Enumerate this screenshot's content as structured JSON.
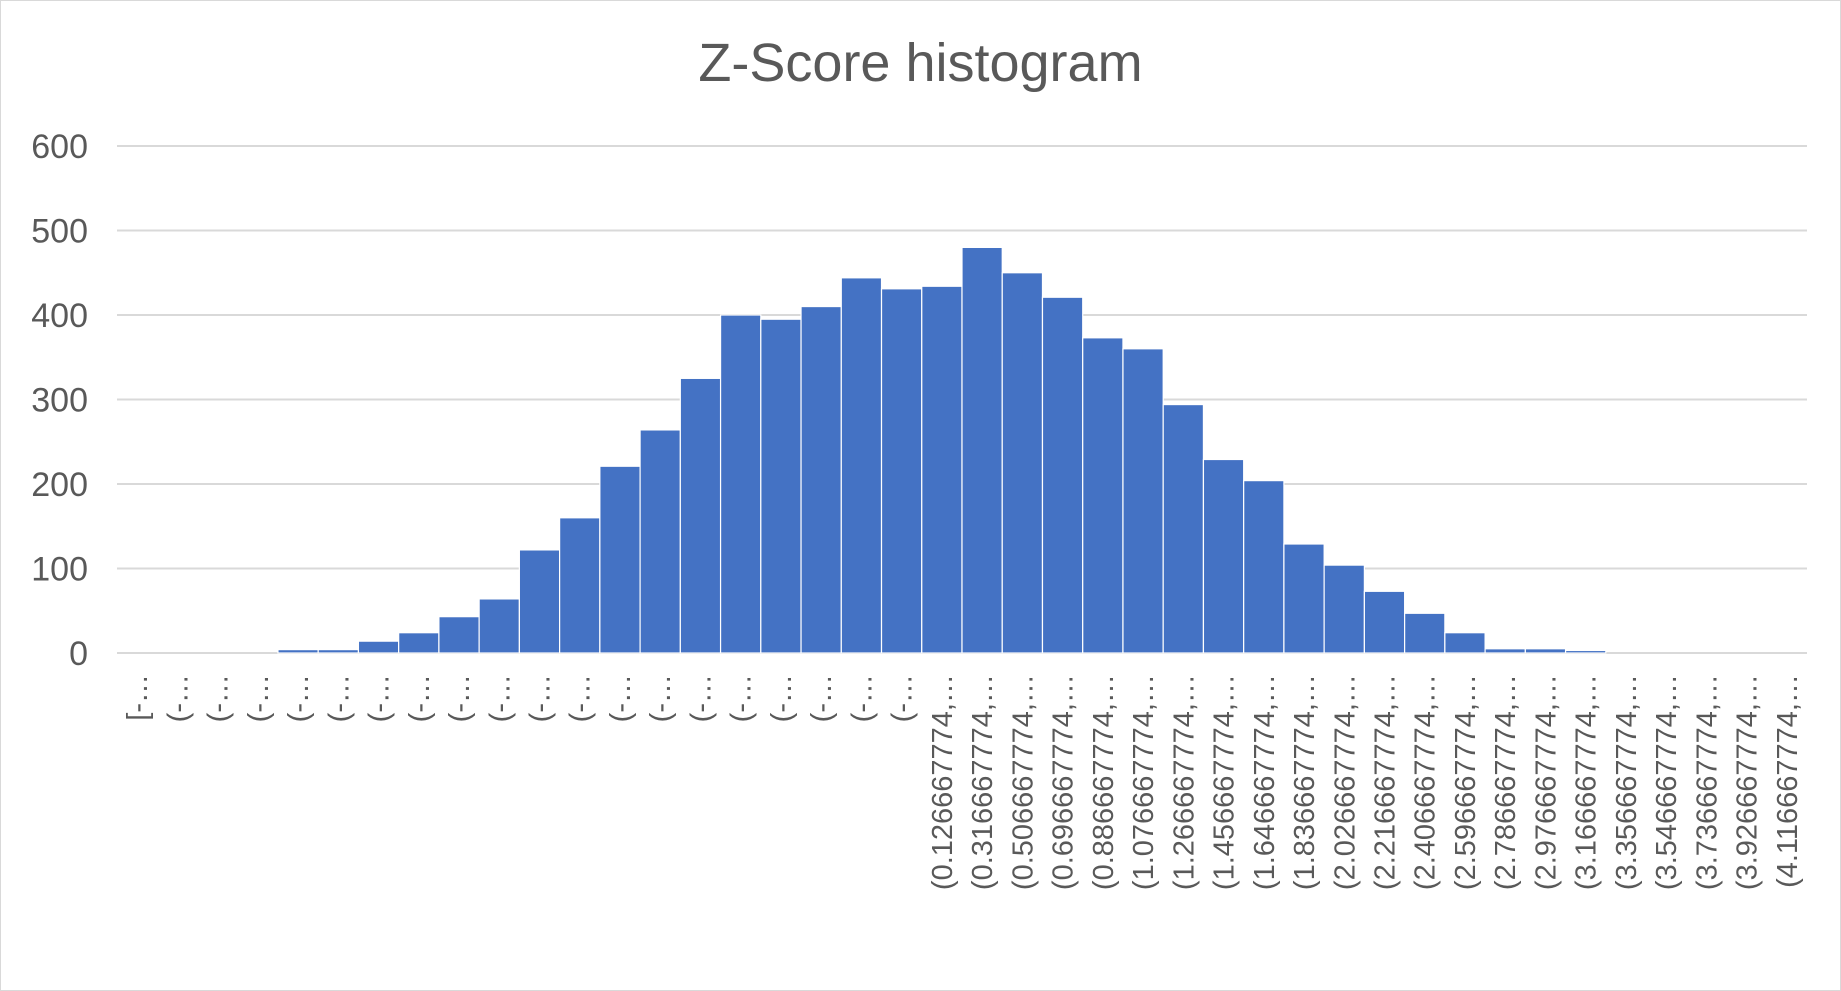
{
  "chart_data": {
    "type": "bar",
    "title": "Z-Score histogram",
    "xlabel": "",
    "ylabel": "",
    "ylim": [
      0,
      600
    ],
    "yticks": [
      0,
      100,
      200,
      300,
      400,
      500,
      600
    ],
    "grid": true,
    "bar_color": "#4472c4",
    "grid_color": "#d9d9d9",
    "categories": [
      "[-…",
      "(-…",
      "(-…",
      "(-…",
      "(-…",
      "(-…",
      "(-…",
      "(-…",
      "(-…",
      "(-…",
      "(-…",
      "(-…",
      "(-…",
      "(-…",
      "(-…",
      "(-…",
      "(-…",
      "(-…",
      "(-…",
      "(-…",
      "(0.126667774,…",
      "(0.316667774,…",
      "(0.506667774,…",
      "(0.696667774,…",
      "(0.886667774,…",
      "(1.076667774,…",
      "(1.266667774,…",
      "(1.456667774,…",
      "(1.646667774,…",
      "(1.836667774,…",
      "(2.026667774,…",
      "(2.216667774,…",
      "(2.406667774,…",
      "(2.596667774,…",
      "(2.786667774,…",
      "(2.976667774,…",
      "(3.166667774,…",
      "(3.356667774,…",
      "(3.546667774,…",
      "(3.736667774,…",
      "(3.926667774,…",
      "(4.116667774,…"
    ],
    "values": [
      0,
      0,
      0,
      0,
      4,
      4,
      14,
      24,
      43,
      64,
      122,
      160,
      221,
      264,
      325,
      400,
      395,
      410,
      444,
      431,
      434,
      480,
      450,
      421,
      373,
      360,
      294,
      229,
      204,
      129,
      104,
      73,
      47,
      24,
      5,
      5,
      3,
      0,
      0,
      0,
      0,
      0
    ]
  }
}
